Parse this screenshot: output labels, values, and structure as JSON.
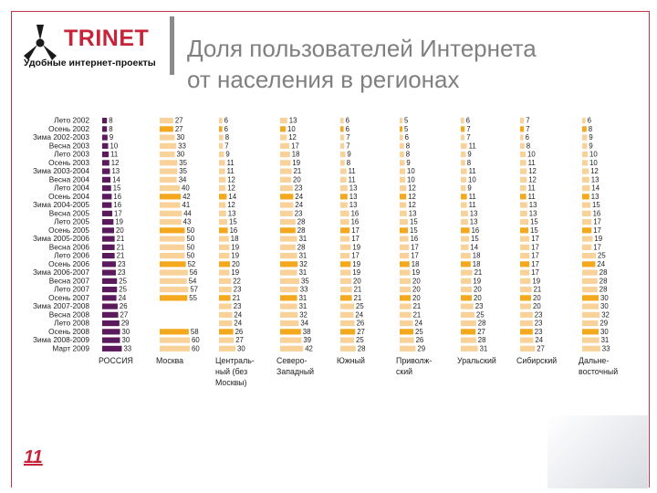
{
  "header": {
    "brand_name": "TRINET",
    "brand_tagline": "Удобные интернет-проекты",
    "title_line1": "Доля пользователей Интернета",
    "title_line2": "от населения в регионах",
    "logo_icon": "trinet-propeller-logo-icon"
  },
  "footer": {
    "page_number": "11"
  },
  "colors": {
    "russia_bar": "#5b1a5c",
    "region_light": "#f9d29a",
    "region_bright": "#f4a81d",
    "accent": "#c7243a"
  },
  "chart_data": {
    "type": "bar",
    "layout": "small-multiples",
    "categories": [
      "Лето 2002",
      "Осень 2002",
      "Зима 2002-2003",
      "Весна 2003",
      "Лето 2003",
      "Осень 2003",
      "Зима 2003-2004",
      "Весна 2004",
      "Лето 2004",
      "Осень 2004",
      "Зима 2004-2005",
      "Весна 2005",
      "Лето 2005",
      "Осень 2005",
      "Зима 2005-2006",
      "Весна 2006",
      "Лето 2006",
      "Осень 2006",
      "Зима 2006-2007",
      "Весна 2007",
      "Лето 2007",
      "Осень 2007",
      "Зима 2007-2008",
      "Весна 2008",
      "Лето 2008",
      "Осень 2008",
      "Зима 2008-2009",
      "Март 2009"
    ],
    "highlight_index": [
      1,
      9,
      13,
      17,
      21,
      25
    ],
    "series": [
      {
        "name": "РОССИЯ",
        "values": [
          8,
          8,
          9,
          10,
          11,
          12,
          13,
          14,
          15,
          16,
          16,
          17,
          19,
          20,
          21,
          21,
          21,
          23,
          23,
          25,
          25,
          24,
          26,
          27,
          29,
          30,
          30,
          33
        ]
      },
      {
        "name": "Москва",
        "values": [
          27,
          27,
          30,
          33,
          30,
          35,
          35,
          34,
          40,
          42,
          41,
          44,
          43,
          50,
          50,
          50,
          50,
          52,
          56,
          54,
          57,
          55,
          null,
          null,
          null,
          58,
          60,
          60
        ]
      },
      {
        "name": "Централь-ный (без Москвы)",
        "values": [
          6,
          6,
          8,
          7,
          9,
          11,
          11,
          12,
          12,
          14,
          12,
          13,
          15,
          16,
          18,
          19,
          19,
          20,
          19,
          22,
          23,
          21,
          23,
          24,
          24,
          26,
          27,
          30
        ]
      },
      {
        "name": "Северо-Западный",
        "values": [
          13,
          10,
          12,
          17,
          18,
          19,
          21,
          20,
          23,
          24,
          24,
          23,
          28,
          28,
          31,
          28,
          31,
          32,
          31,
          35,
          33,
          31,
          31,
          32,
          34,
          38,
          39,
          42
        ]
      },
      {
        "name": "Южный",
        "values": [
          6,
          6,
          7,
          7,
          9,
          8,
          11,
          11,
          13,
          13,
          13,
          16,
          16,
          17,
          17,
          19,
          17,
          19,
          19,
          20,
          21,
          21,
          25,
          24,
          26,
          27,
          25,
          28
        ]
      },
      {
        "name": "Приволж-ский",
        "values": [
          5,
          5,
          6,
          8,
          8,
          9,
          10,
          10,
          12,
          12,
          12,
          13,
          15,
          15,
          16,
          17,
          17,
          18,
          19,
          20,
          20,
          20,
          21,
          21,
          24,
          25,
          26,
          29
        ]
      },
      {
        "name": "Уральский",
        "values": [
          6,
          7,
          7,
          11,
          9,
          8,
          11,
          10,
          9,
          11,
          11,
          13,
          13,
          16,
          15,
          14,
          18,
          18,
          21,
          19,
          20,
          20,
          23,
          25,
          28,
          27,
          28,
          31
        ]
      },
      {
        "name": "Сибирский",
        "values": [
          7,
          7,
          6,
          8,
          10,
          11,
          12,
          12,
          11,
          11,
          13,
          13,
          15,
          15,
          17,
          17,
          17,
          17,
          17,
          19,
          21,
          20,
          20,
          23,
          23,
          23,
          24,
          27
        ]
      },
      {
        "name": "Дальне-восточный",
        "values": [
          6,
          8,
          9,
          9,
          10,
          10,
          12,
          13,
          14,
          13,
          15,
          16,
          17,
          17,
          19,
          17,
          25,
          24,
          28,
          28,
          28,
          30,
          30,
          32,
          29,
          30,
          31,
          33
        ]
      }
    ],
    "column_labels": [
      [
        "РОССИЯ"
      ],
      [
        "Москва"
      ],
      [
        "Централь-",
        "ный (без",
        "Москвы)"
      ],
      [
        "Северо-",
        "Западный"
      ],
      [
        "Южный"
      ],
      [
        "Приволж-",
        "ский"
      ],
      [
        "Уральский"
      ],
      [
        "Сибирский"
      ],
      [
        "Дальне-",
        "восточный"
      ]
    ]
  }
}
